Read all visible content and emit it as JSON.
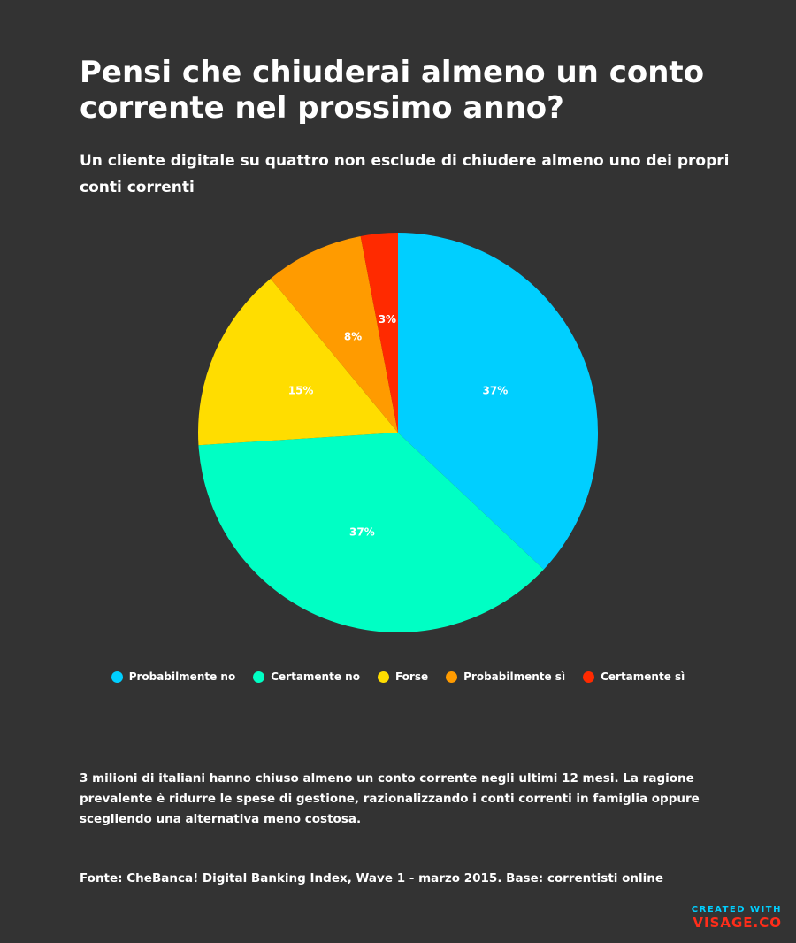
{
  "colors": {
    "background": "#333333",
    "text": "#FFFFFF"
  },
  "chart_data": {
    "type": "pie",
    "title": "Pensi che chiuderai almeno un conto corrente nel prossimo anno?",
    "subtitle": "Un cliente digitale su quattro non esclude di chiudere almeno uno dei propri conti correnti",
    "legend_position": "bottom",
    "slices": [
      {
        "name": "Probabilmente no",
        "value": 37,
        "label": "37%",
        "color": "#00CFFF"
      },
      {
        "name": "Certamente no",
        "value": 37,
        "label": "37%",
        "color": "#00FFC4"
      },
      {
        "name": "Forse",
        "value": 15,
        "label": "15%",
        "color": "#FFDD00"
      },
      {
        "name": "Probabilmente sì",
        "value": 8,
        "label": "8%",
        "color": "#FF9B00"
      },
      {
        "name": "Certamente sì",
        "value": 3,
        "label": "3%",
        "color": "#FF2A00"
      }
    ]
  },
  "note": "3 milioni di italiani hanno chiuso almeno un conto corrente negli ultimi 12 mesi. La ragione prevalente è ridurre le spese di gestione, razionalizzando i conti correnti in famiglia oppure scegliendo una alternativa meno costosa.",
  "source": "Fonte: CheBanca! Digital Banking Index, Wave 1 - marzo 2015. Base: correntisti online",
  "branding": {
    "line1": "CREATED WITH",
    "line2": "VISAGE.CO"
  }
}
